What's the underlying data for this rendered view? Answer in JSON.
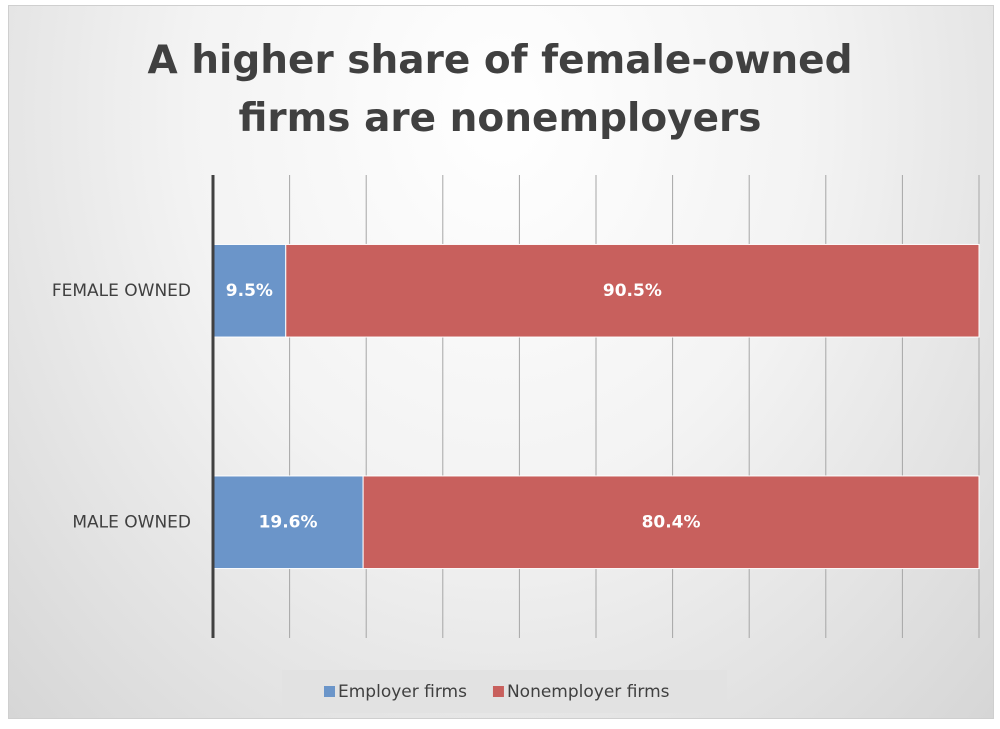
{
  "chart_data": {
    "type": "stacked_bar_horizontal",
    "title": "A higher share of female-owned firms are nonemployers",
    "categories": [
      "FEMALE OWNED",
      "MALE OWNED"
    ],
    "series": [
      {
        "name": "Employer firms",
        "color": "#6b95c9",
        "values": [
          9.5,
          19.6
        ],
        "value_labels": [
          "9.5%",
          "19.6%"
        ]
      },
      {
        "name": "Nonemployer firms",
        "color": "#c8605d",
        "values": [
          90.5,
          80.4
        ],
        "value_labels": [
          "90.5%",
          "80.4%"
        ]
      }
    ],
    "xlim": [
      0,
      100
    ],
    "xticks": [
      0,
      10,
      20,
      30,
      40,
      50,
      60,
      70,
      80,
      90,
      100
    ],
    "grid": true,
    "legend": "bottom"
  }
}
